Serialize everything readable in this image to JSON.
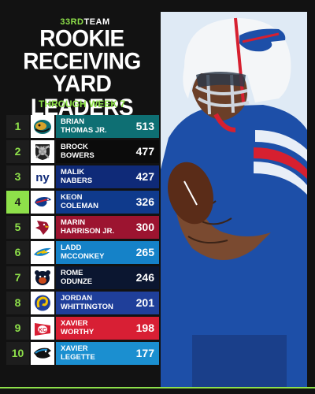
{
  "brand": {
    "prefix": "33RD",
    "suffix": "TEAM"
  },
  "title_lines": [
    "ROOKIE",
    "RECEIVING",
    "YARD LEADERS"
  ],
  "subtitle": "THROUGH WEEK 7",
  "colors": {
    "accent": "#8ee04a"
  },
  "leaders": [
    {
      "rank": "1",
      "first": "BRIAN",
      "last": "THOMAS JR.",
      "yards": "513",
      "team_logo": "jaguars-logo-icon",
      "color": "#0e6f73"
    },
    {
      "rank": "2",
      "first": "BROCK",
      "last": "BOWERS",
      "yards": "477",
      "team_logo": "raiders-logo-icon",
      "color": "#0b0b0b"
    },
    {
      "rank": "3",
      "first": "MALIK",
      "last": "NABERS",
      "yards": "427",
      "team_logo": "giants-logo-icon",
      "color": "#0f2a78"
    },
    {
      "rank": "4",
      "first": "KEON",
      "last": "COLEMAN",
      "yards": "326",
      "team_logo": "bills-logo-icon",
      "color": "#0f3a8c"
    },
    {
      "rank": "5",
      "first": "MARIN",
      "last": "HARRISON JR.",
      "yards": "300",
      "team_logo": "cardinals-logo-icon",
      "color": "#9c1430"
    },
    {
      "rank": "6",
      "first": "LADD",
      "last": "McCONKEY",
      "yards": "265",
      "team_logo": "chargers-logo-icon",
      "color": "#1582c8"
    },
    {
      "rank": "7",
      "first": "ROME",
      "last": "ODUNZE",
      "yards": "246",
      "team_logo": "bears-logo-icon",
      "color": "#0b1630"
    },
    {
      "rank": "8",
      "first": "JORDAN",
      "last": "WHITTINGTON",
      "yards": "201",
      "team_logo": "rams-logo-icon",
      "color": "#1f3f9a"
    },
    {
      "rank": "9",
      "first": "XAVIER",
      "last": "WORTHY",
      "yards": "198",
      "team_logo": "chiefs-logo-icon",
      "color": "#d81f34"
    },
    {
      "rank": "10",
      "first": "XAVIER",
      "last": "LEGETTE",
      "yards": "177",
      "team_logo": "panthers-logo-icon",
      "color": "#1b8fd0"
    }
  ],
  "photo": {
    "subject": "player-photo",
    "jersey_color": "#1d4fa8"
  }
}
